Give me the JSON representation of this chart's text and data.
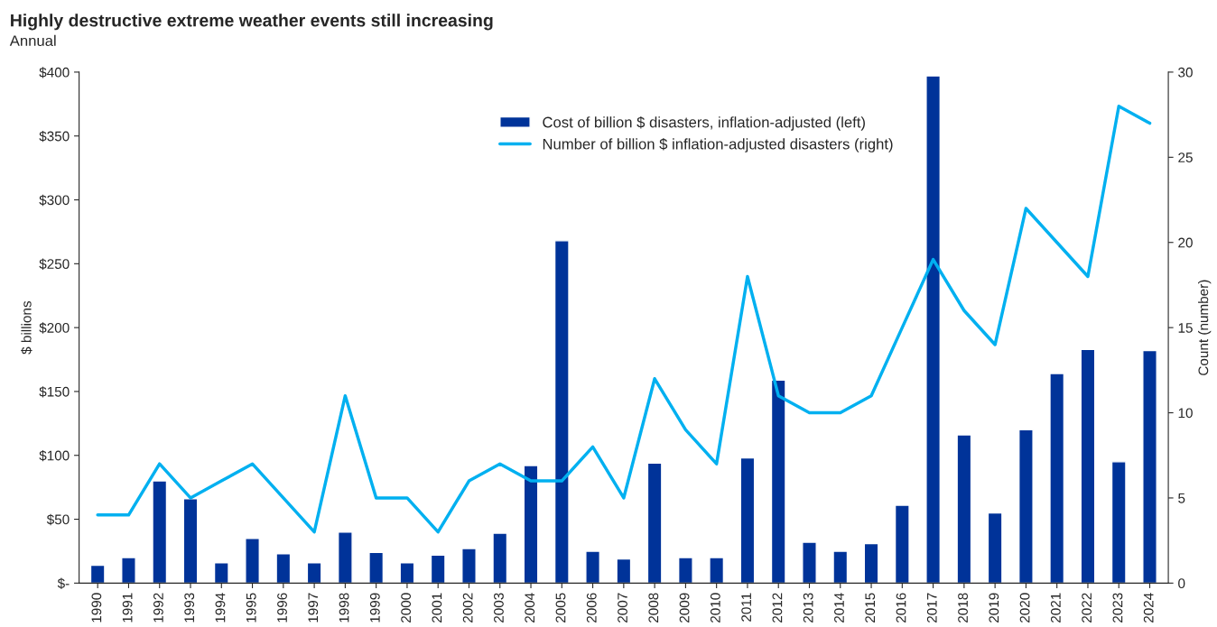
{
  "chart_data": {
    "type": "bar",
    "title": "Highly destructive extreme weather events still increasing",
    "subtitle": "Annual",
    "ylabel": "$ billions",
    "y2label": "Count (number)",
    "categories": [
      "1990",
      "1991",
      "1992",
      "1993",
      "1994",
      "1995",
      "1996",
      "1997",
      "1998",
      "1999",
      "2000",
      "2001",
      "2002",
      "2003",
      "2004",
      "2005",
      "2006",
      "2007",
      "2008",
      "2009",
      "2010",
      "2011",
      "2012",
      "2013",
      "2014",
      "2015",
      "2016",
      "2017",
      "2018",
      "2019",
      "2020",
      "2021",
      "2022",
      "2023",
      "2024"
    ],
    "series": [
      {
        "name": "Cost of billion $ disasters, inflation-adjusted (left)",
        "color": "#003399",
        "values": [
          14,
          20,
          80,
          66,
          16,
          35,
          23,
          16,
          40,
          24,
          16,
          22,
          27,
          39,
          92,
          268,
          25,
          19,
          94,
          20,
          20,
          98,
          159,
          32,
          25,
          31,
          61,
          397,
          116,
          55,
          120,
          164,
          183,
          95,
          182
        ]
      },
      {
        "name": "Number of billion $ inflation-adjusted disasters (right)",
        "type": "line",
        "axis": "y2",
        "color": "#00b0f0",
        "values": [
          4,
          4,
          7,
          5,
          6,
          7,
          5,
          3,
          11,
          5,
          5,
          3,
          6,
          7,
          6,
          6,
          8,
          5,
          12,
          9,
          7,
          18,
          11,
          10,
          10,
          11,
          15,
          19,
          16,
          14,
          22,
          20,
          18,
          28,
          27
        ]
      }
    ],
    "ylim": [
      0,
      400
    ],
    "yticks": [
      {
        "value": 0,
        "label": "$-"
      },
      {
        "value": 50,
        "label": "$50"
      },
      {
        "value": 100,
        "label": "$100"
      },
      {
        "value": 150,
        "label": "$150"
      },
      {
        "value": 200,
        "label": "$200"
      },
      {
        "value": 250,
        "label": "$250"
      },
      {
        "value": 300,
        "label": "$300"
      },
      {
        "value": 350,
        "label": "$350"
      },
      {
        "value": 400,
        "label": "$400"
      }
    ],
    "y2lim": [
      0,
      30
    ],
    "y2ticks": [
      0,
      5,
      10,
      15,
      20,
      25,
      30
    ],
    "grid": false,
    "legend": "top right"
  }
}
